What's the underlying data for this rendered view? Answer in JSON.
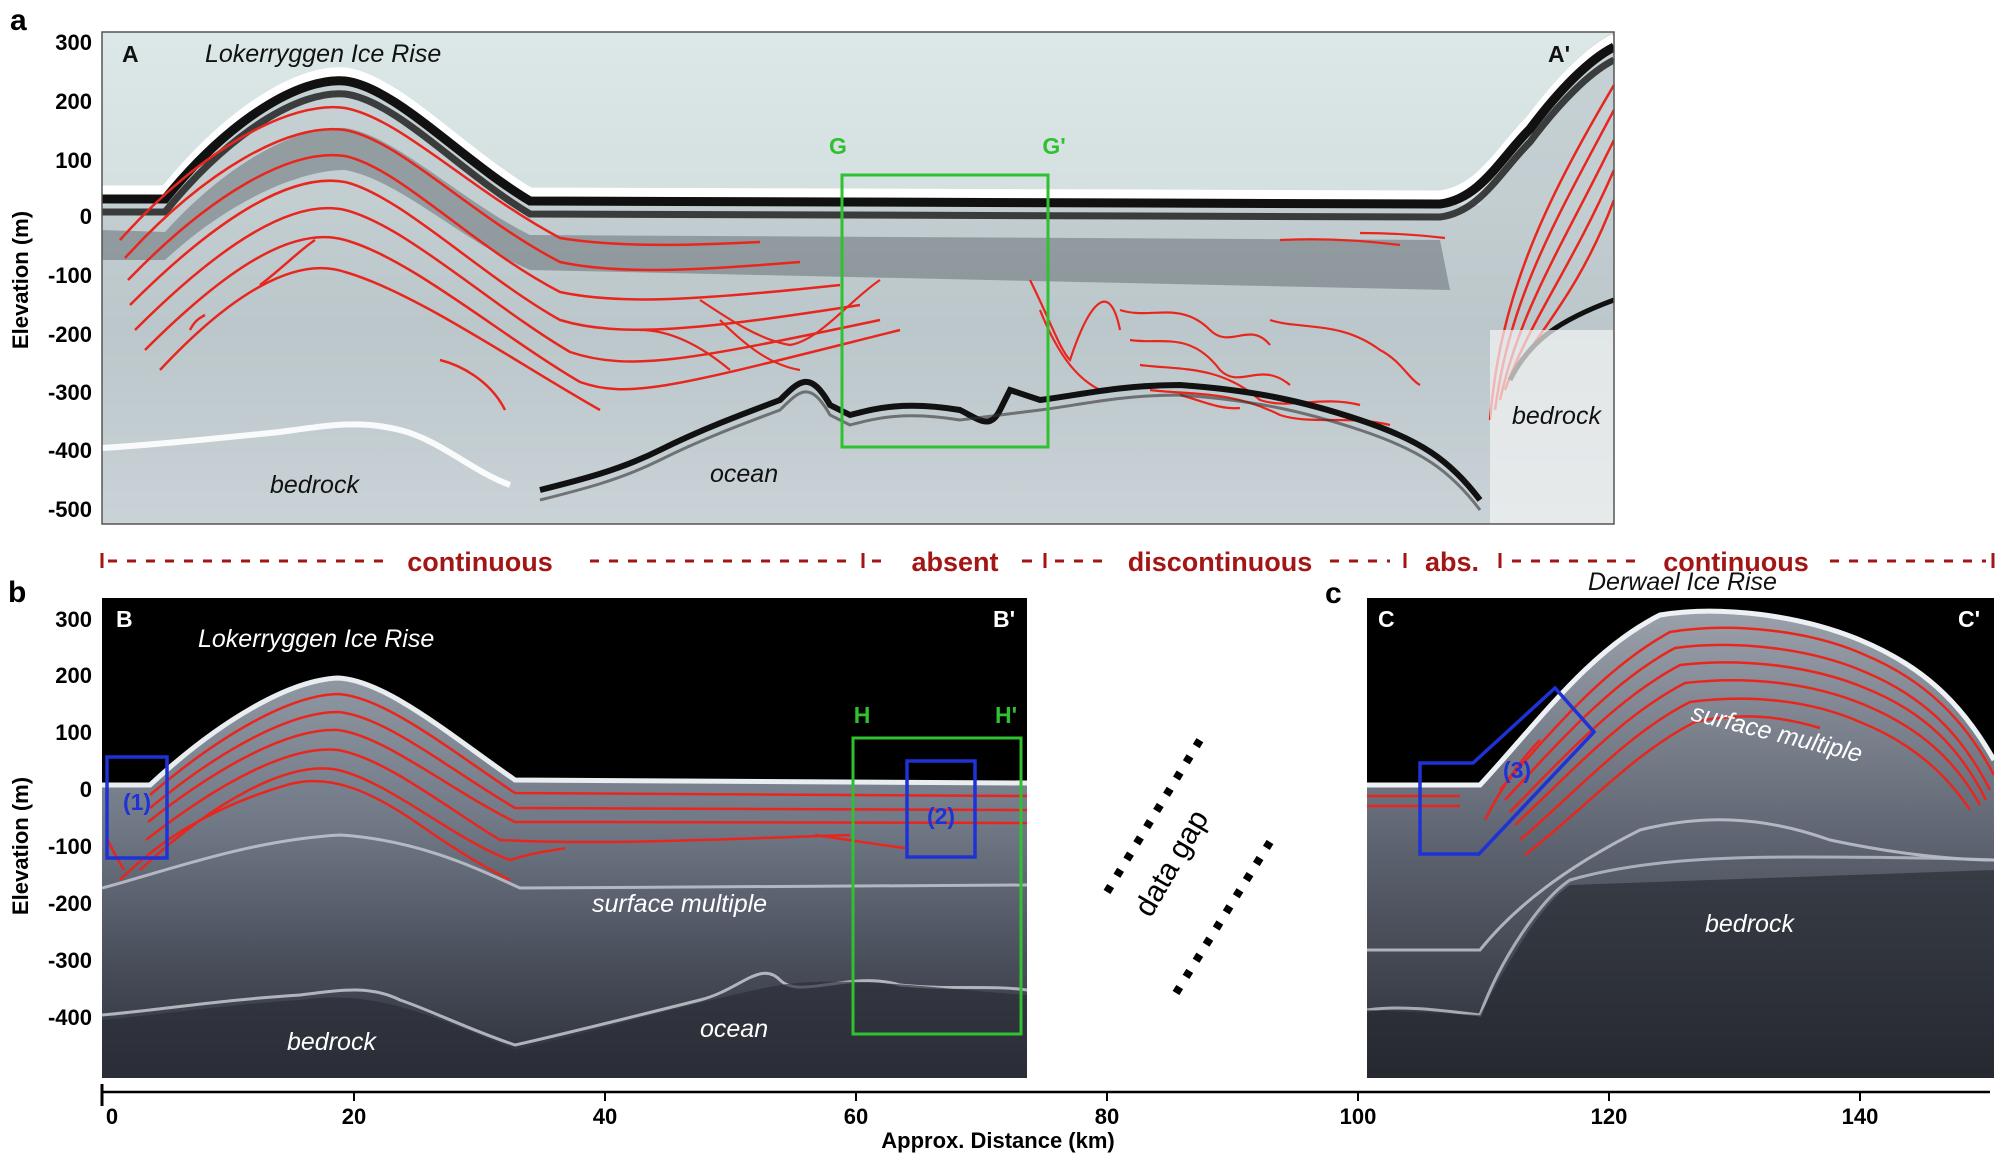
{
  "panels": {
    "a": {
      "letter": "a",
      "start_label": "A",
      "end_label": "A'",
      "title": "Lokerryggen Ice Rise",
      "box_labels": [
        "G",
        "G'"
      ],
      "labels": {
        "bedrock_left": "bedrock",
        "ocean": "ocean",
        "bedrock_right": "bedrock"
      },
      "y_ticks": [
        "300",
        "200",
        "100",
        "0",
        "-100",
        "-200",
        "-300",
        "-400",
        "-500"
      ],
      "y_label": "Elevation (m)"
    },
    "b": {
      "letter": "b",
      "start_label": "B",
      "end_label": "B'",
      "title": "Lokerryggen Ice Rise",
      "box_labels": [
        "H",
        "H'"
      ],
      "markers": [
        "(1)",
        "(2)"
      ],
      "labels": {
        "surface_multiple": "surface multiple",
        "bedrock": "bedrock",
        "ocean": "ocean"
      },
      "y_ticks": [
        "300",
        "200",
        "100",
        "0",
        "-100",
        "-200",
        "-300",
        "-400"
      ],
      "y_label": "Elevation (m)"
    },
    "c": {
      "letter": "c",
      "start_label": "C",
      "end_label": "C'",
      "title": "Derwael Ice Rise",
      "markers": [
        "(3)"
      ],
      "labels": {
        "surface_multiple": "surface multiple",
        "bedrock": "bedrock"
      }
    }
  },
  "zones": [
    "continuous",
    "absent",
    "discontinuous",
    "abs.",
    "continuous"
  ],
  "data_gap": "data gap",
  "x_axis": {
    "label": "Approx. Distance (km)",
    "ticks": [
      "0",
      "20",
      "40",
      "60",
      "80",
      "100",
      "120",
      "140"
    ]
  },
  "colors": {
    "layers": "#e8261e",
    "green_box": "#2fc12f",
    "blue_box": "#1e32d6",
    "zone_text": "#a31616"
  }
}
